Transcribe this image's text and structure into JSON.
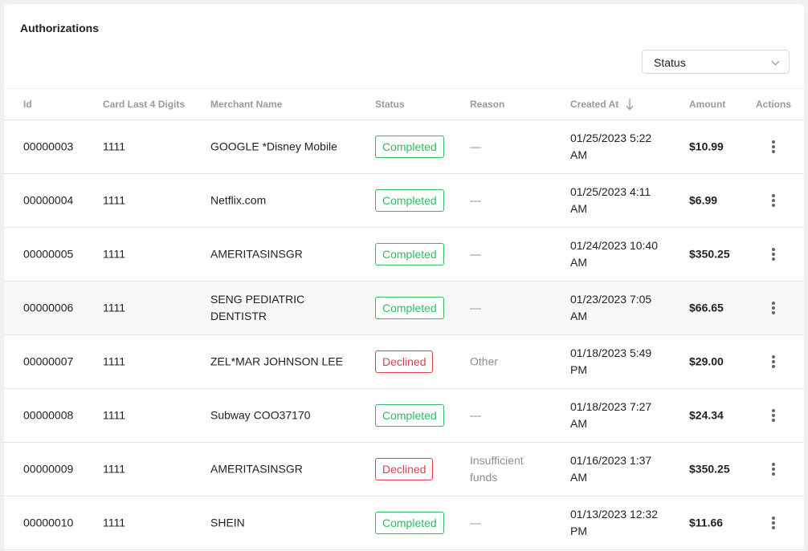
{
  "title": "Authorizations",
  "filter": {
    "label": "Status"
  },
  "columns": {
    "id": "Id",
    "card": "Card Last 4 Digits",
    "merchant": "Merchant Name",
    "status": "Status",
    "reason": "Reason",
    "created": "Created At",
    "amount": "Amount",
    "actions": "Actions"
  },
  "rows": [
    {
      "id": "00000003",
      "card": "1111",
      "merchant": "GOOGLE *Disney Mobile",
      "status": "Completed",
      "reason": "—",
      "created": "01/25/2023 5:22 AM",
      "amount": "$10.99"
    },
    {
      "id": "00000004",
      "card": "1111",
      "merchant": "Netflix.com",
      "status": "Completed",
      "reason": "—",
      "created": "01/25/2023 4:11 AM",
      "amount": "$6.99"
    },
    {
      "id": "00000005",
      "card": "1111",
      "merchant": "AMERITASINSGR",
      "status": "Completed",
      "reason": "—",
      "created": "01/24/2023 10:40 AM",
      "amount": "$350.25"
    },
    {
      "id": "00000006",
      "card": "1111",
      "merchant": "SENG PEDIATRIC DENTISTR",
      "status": "Completed",
      "reason": "—",
      "created": "01/23/2023 7:05 AM",
      "amount": "$66.65"
    },
    {
      "id": "00000007",
      "card": "1111",
      "merchant": "ZEL*MAR JOHNSON LEE",
      "status": "Declined",
      "reason": "Other",
      "created": "01/18/2023 5:49 PM",
      "amount": "$29.00"
    },
    {
      "id": "00000008",
      "card": "1111",
      "merchant": "Subway COO37170",
      "status": "Completed",
      "reason": "—",
      "created": "01/18/2023 7:27 AM",
      "amount": "$24.34"
    },
    {
      "id": "00000009",
      "card": "1111",
      "merchant": "AMERITASINSGR",
      "status": "Declined",
      "reason": "Insufficient funds",
      "created": "01/16/2023 1:37 AM",
      "amount": "$350.25"
    },
    {
      "id": "00000010",
      "card": "1111",
      "merchant": "SHEIN",
      "status": "Completed",
      "reason": "—",
      "created": "01/13/2023 12:32 PM",
      "amount": "$11.66"
    }
  ],
  "colors": {
    "completed": "#2ebd62",
    "declined": "#e23c4f"
  },
  "icons": {
    "sort": "arrow-down-icon",
    "actions": "more-vertical-icon",
    "dropdown": "chevron-down-icon"
  }
}
